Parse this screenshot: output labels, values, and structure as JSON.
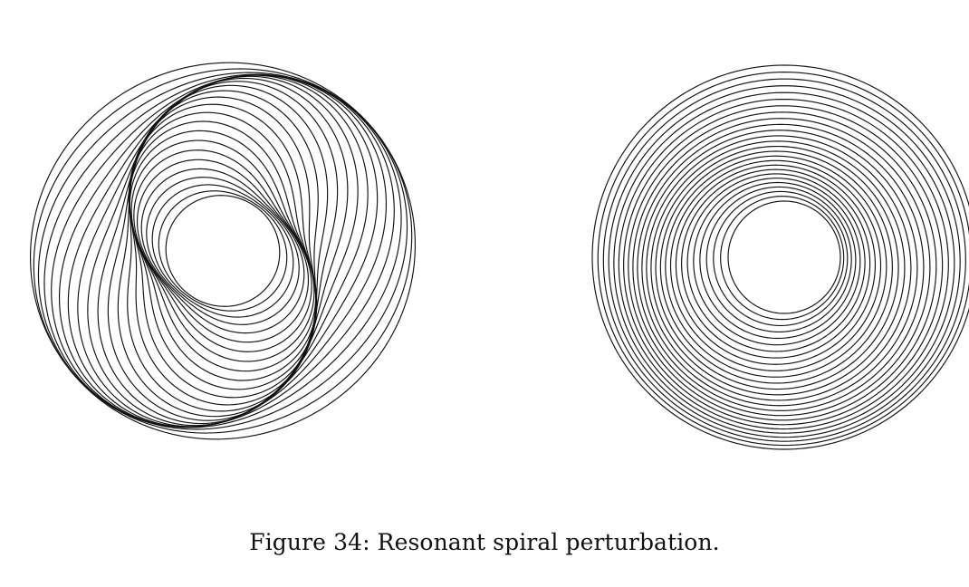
{
  "figure": {
    "caption": "Figure 34: Resonant spiral perturbation.",
    "panels": [
      {
        "panel": "left",
        "ring_count": 26,
        "perturbation": "bisymmetric resonant spiral"
      },
      {
        "panel": "right",
        "ring_count": 26,
        "perturbation": "one-armed resonant spiral"
      }
    ],
    "line_color": "#111111",
    "background_color": "#ffffff"
  }
}
